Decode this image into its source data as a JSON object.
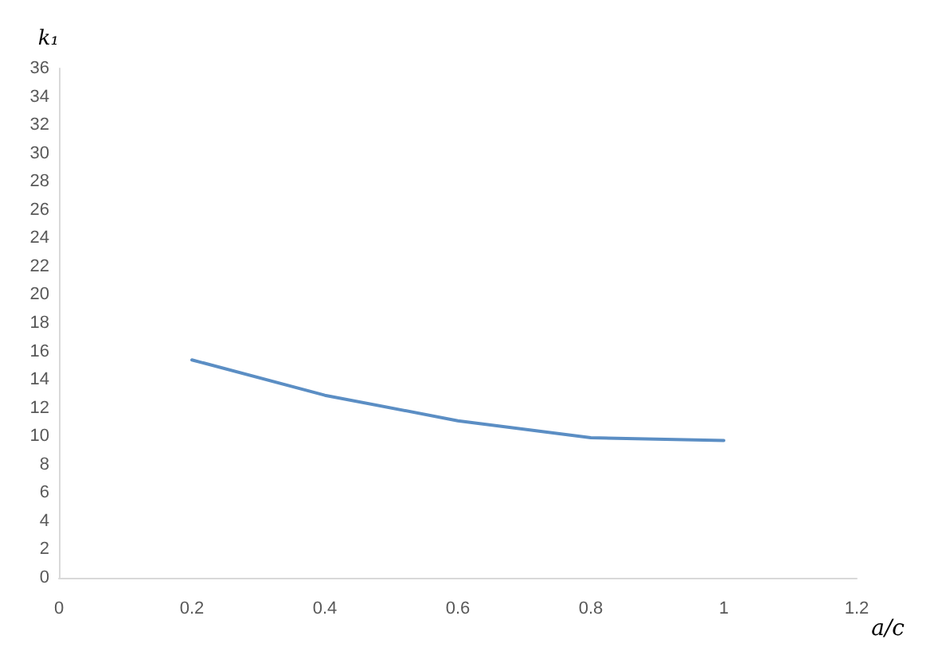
{
  "chart_data": {
    "type": "line",
    "xlabel": "a/c",
    "ylabel": "k₁",
    "x": [
      0.2,
      0.4,
      0.6,
      0.8,
      1
    ],
    "series": [
      {
        "color": "#5b8ec4",
        "values": [
          15.4,
          12.9,
          11.1,
          9.9,
          9.7
        ]
      }
    ],
    "xlim": [
      0,
      1.2
    ],
    "xticks": [
      0,
      0.2,
      0.4,
      0.6,
      0.8,
      1,
      1.2
    ],
    "ylim": [
      0,
      36
    ],
    "yticks": [
      0,
      2,
      4,
      6,
      8,
      10,
      12,
      14,
      16,
      18,
      20,
      22,
      24,
      26,
      28,
      30,
      32,
      34,
      36
    ],
    "grid": false,
    "marker": "none",
    "line_style": "solid"
  }
}
